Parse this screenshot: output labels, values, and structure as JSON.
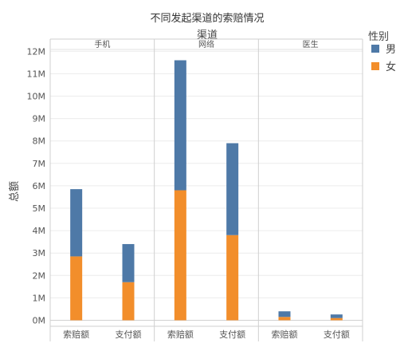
{
  "chart_data": {
    "type": "bar",
    "stacked": true,
    "title": "不同发起渠道的索赔情况",
    "column_header": "渠道",
    "ylabel": "总额",
    "panels": [
      {
        "name": "手机",
        "categories": [
          "索赔额",
          "支付额"
        ]
      },
      {
        "name": "网络",
        "categories": [
          "索赔额",
          "支付额"
        ]
      },
      {
        "name": "医生",
        "categories": [
          "索赔额",
          "支付额"
        ]
      }
    ],
    "legend": {
      "title": "性别",
      "position": "right"
    },
    "series": [
      {
        "name": "男",
        "color": "#4e79a7",
        "values": [
          [
            3.0,
            1.7
          ],
          [
            5.8,
            4.1
          ],
          [
            0.25,
            0.16
          ]
        ]
      },
      {
        "name": "女",
        "color": "#f28e2b",
        "values": [
          [
            2.85,
            1.7
          ],
          [
            5.8,
            3.8
          ],
          [
            0.15,
            0.1
          ]
        ]
      }
    ],
    "ylim": [
      0,
      12.6
    ],
    "yticks": [
      "0M",
      "1M",
      "2M",
      "3M",
      "4M",
      "5M",
      "6M",
      "7M",
      "8M",
      "9M",
      "10M",
      "11M",
      "12M"
    ],
    "grid": true
  }
}
